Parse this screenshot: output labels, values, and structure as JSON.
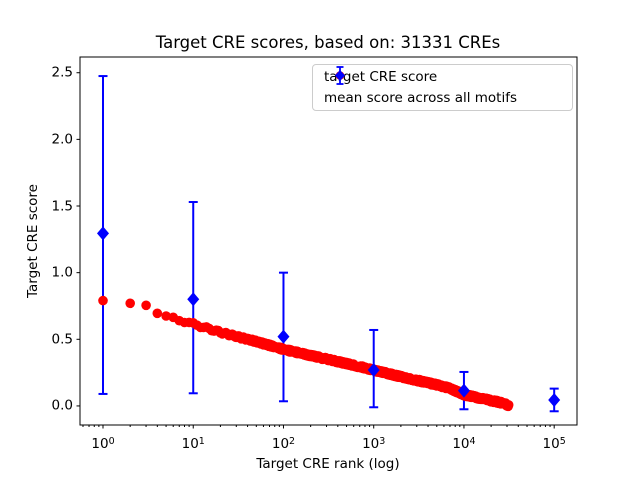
{
  "title": "Target CRE scores, based on: 31331 CREs",
  "xlabel": "Target CRE rank (log)",
  "ylabel": "Target CRE score",
  "legend": {
    "items": [
      {
        "label": "target CRE score",
        "marker": "circle",
        "color": "#ff0000"
      },
      {
        "label": "mean score across all motifs",
        "marker": "diamond-errorbar",
        "color": "#0000ff"
      }
    ]
  },
  "chart_data": {
    "type": "scatter",
    "title": "Target CRE scores, based on: 31331 CREs",
    "xlabel": "Target CRE rank (log)",
    "ylabel": "Target CRE score",
    "x_scale": "log",
    "grid": false,
    "legend_position": "upper right",
    "xlim": [
      0.556,
      179000
    ],
    "ylim": [
      -0.143,
      2.618
    ],
    "x_tick_exponents": [
      0,
      1,
      2,
      3,
      4,
      5
    ],
    "y_ticks": [
      0.0,
      0.5,
      1.0,
      1.5,
      2.0,
      2.5
    ],
    "series": [
      {
        "name": "target CRE score",
        "style": "dense-scatter-curve",
        "color": "#ff0000",
        "n_points": 31331,
        "rank_range": [
          1,
          31331
        ],
        "anchors_rank_score": [
          [
            1,
            0.79
          ],
          [
            2,
            0.77
          ],
          [
            3,
            0.755
          ],
          [
            4,
            0.695
          ],
          [
            5,
            0.675
          ],
          [
            7,
            0.645
          ],
          [
            10,
            0.615
          ],
          [
            15,
            0.578
          ],
          [
            20,
            0.553
          ],
          [
            30,
            0.522
          ],
          [
            50,
            0.483
          ],
          [
            70,
            0.455
          ],
          [
            100,
            0.425
          ],
          [
            150,
            0.398
          ],
          [
            200,
            0.378
          ],
          [
            300,
            0.352
          ],
          [
            500,
            0.318
          ],
          [
            700,
            0.295
          ],
          [
            1000,
            0.268
          ],
          [
            1500,
            0.24
          ],
          [
            2000,
            0.219
          ],
          [
            3000,
            0.193
          ],
          [
            5000,
            0.158
          ],
          [
            7000,
            0.132
          ],
          [
            10000,
            0.085
          ],
          [
            15000,
            0.058
          ],
          [
            20000,
            0.04
          ],
          [
            25000,
            0.027
          ],
          [
            31331,
            0.005
          ]
        ]
      },
      {
        "name": "mean score across all motifs",
        "style": "errorbar-diamond",
        "color": "#0000ff",
        "points": [
          {
            "rank": 1,
            "mean": 1.295,
            "err_lo": 0.09,
            "err_hi": 2.475
          },
          {
            "rank": 10,
            "mean": 0.8,
            "err_lo": 0.095,
            "err_hi": 1.53
          },
          {
            "rank": 100,
            "mean": 0.52,
            "err_lo": 0.035,
            "err_hi": 1.0
          },
          {
            "rank": 1000,
            "mean": 0.27,
            "err_lo": -0.01,
            "err_hi": 0.57
          },
          {
            "rank": 10000,
            "mean": 0.115,
            "err_lo": -0.025,
            "err_hi": 0.255
          },
          {
            "rank": 100000,
            "mean": 0.045,
            "err_lo": -0.04,
            "err_hi": 0.13
          }
        ]
      }
    ]
  }
}
